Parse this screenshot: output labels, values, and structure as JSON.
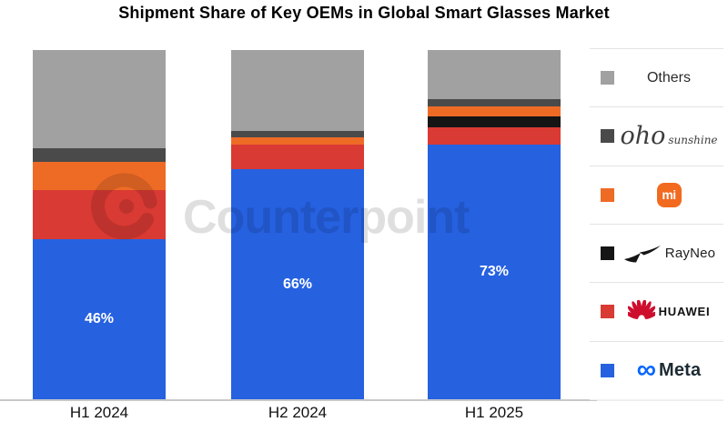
{
  "title": "Shipment Share of Key OEMs in Global Smart Glasses Market",
  "watermark": {
    "text": "Counterpoint"
  },
  "chart_data": {
    "type": "bar",
    "subtype": "stacked-100pct",
    "title": "Shipment Share of Key OEMs in Global Smart Glasses Market",
    "categories": [
      "H1 2024",
      "H2 2024",
      "H1 2025"
    ],
    "series": [
      {
        "name": "Meta",
        "color": "#2661E0",
        "values": [
          46,
          66,
          73
        ],
        "labels": [
          "46%",
          "66%",
          "73%"
        ]
      },
      {
        "name": "HUAWEI",
        "color": "#D93A33",
        "values": [
          14,
          7,
          5
        ]
      },
      {
        "name": "RayNeo",
        "color": "#151515",
        "values": [
          0,
          0,
          3
        ]
      },
      {
        "name": "Mi",
        "color": "#EE6B26",
        "values": [
          8,
          2,
          3
        ]
      },
      {
        "name": "oho sunshine",
        "color": "#4A4A4A",
        "values": [
          4,
          2,
          2
        ]
      },
      {
        "name": "Others",
        "color": "#A1A1A1",
        "values": [
          28,
          23,
          14
        ]
      }
    ],
    "xlabel": "",
    "ylabel": "",
    "ylim": [
      0,
      100
    ],
    "grid": false,
    "legend_position": "right",
    "legend_order_top_to_bottom": [
      "Others",
      "oho sunshine",
      "Mi",
      "RayNeo",
      "HUAWEI",
      "Meta"
    ]
  },
  "legend": {
    "items": [
      {
        "name": "Others",
        "swatch": "#A1A1A1",
        "label": "Others"
      },
      {
        "name": "oho sunshine",
        "swatch": "#4A4A4A",
        "word1": "oho",
        "word2": "sunshine"
      },
      {
        "name": "Mi",
        "swatch": "#EE6B26",
        "glyph": "mi"
      },
      {
        "name": "RayNeo",
        "swatch": "#151515",
        "label": "RayNeo"
      },
      {
        "name": "HUAWEI",
        "swatch": "#D93A33",
        "label": "HUAWEI"
      },
      {
        "name": "Meta",
        "swatch": "#2661E0",
        "infinity": "∞",
        "label": "Meta"
      }
    ]
  },
  "colors": {
    "axis_line": "#c8c8c8",
    "divider": "#e3e3e3",
    "watermark": "rgba(0,0,0,0.125)"
  }
}
